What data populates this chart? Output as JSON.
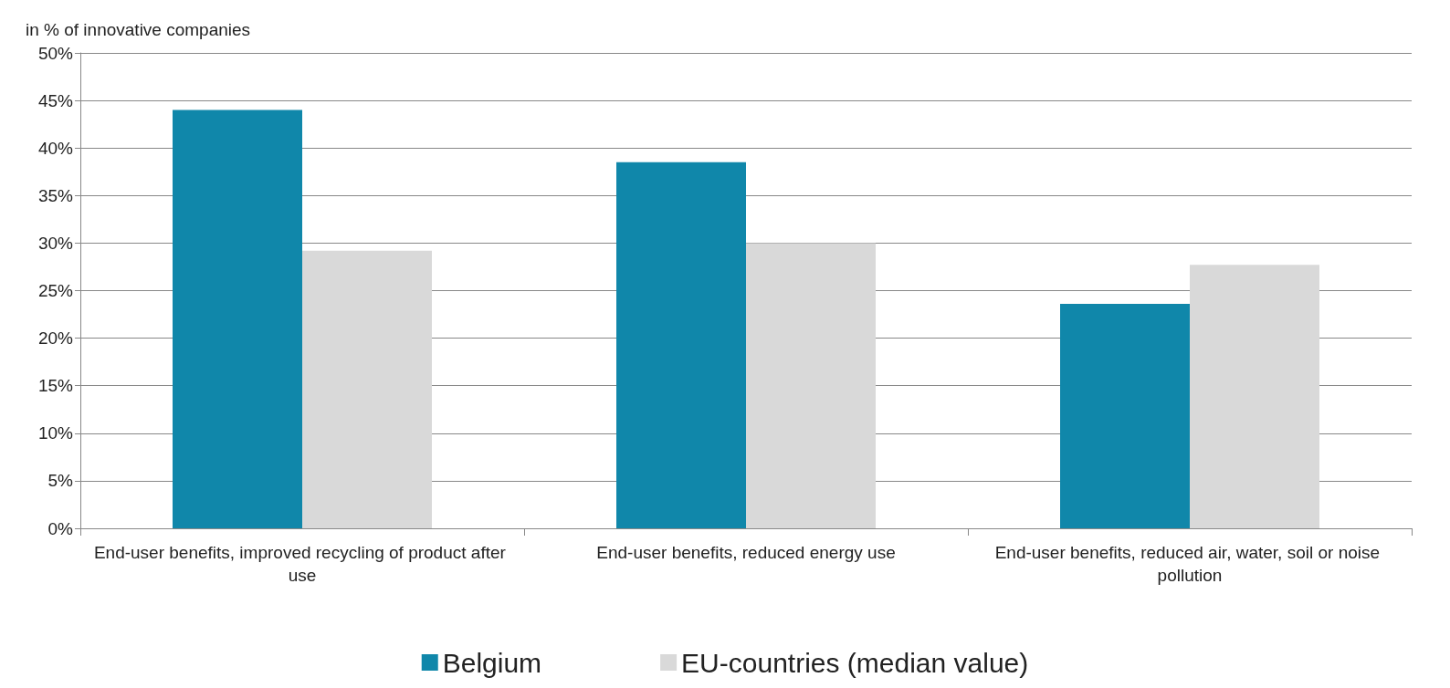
{
  "chart_data": {
    "type": "bar",
    "ylabel": "in % of innovative companies",
    "categories": [
      "End-user benefits, improved recycling of product after use",
      "End-user benefits, reduced energy use",
      "End-user benefits, reduced air, water, soil or noise pollution"
    ],
    "series": [
      {
        "name": "Belgium",
        "color": "#1087aa",
        "values": [
          44,
          38.5,
          23.6
        ]
      },
      {
        "name": "EU-countries (median value)",
        "color": "#d9d9d9",
        "values": [
          29.2,
          30,
          27.7
        ]
      }
    ],
    "ylim": [
      0,
      50
    ],
    "yticks": [
      {
        "value": 0,
        "label": "0%"
      },
      {
        "value": 5,
        "label": "5%"
      },
      {
        "value": 10,
        "label": "10%"
      },
      {
        "value": 15,
        "label": "15%"
      },
      {
        "value": 20,
        "label": "20%"
      },
      {
        "value": 25,
        "label": "25%"
      },
      {
        "value": 30,
        "label": "30%"
      },
      {
        "value": 35,
        "label": "35%"
      },
      {
        "value": 40,
        "label": "40%"
      },
      {
        "value": 45,
        "label": "45%"
      },
      {
        "value": 50,
        "label": "50%"
      }
    ],
    "grid": "y",
    "legend": "bottom"
  }
}
